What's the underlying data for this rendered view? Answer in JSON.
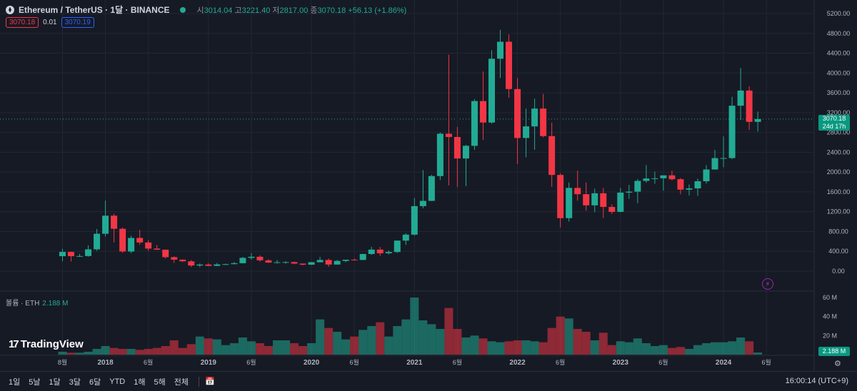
{
  "header": {
    "symbol": "Ethereum / TetherUS · 1달 · BINANCE",
    "open_label": "시",
    "open": "3014.04",
    "high_label": "고",
    "high": "3221.40",
    "low_label": "저",
    "low": "2817.00",
    "close_label": "종",
    "close": "3070.18",
    "change": "+56.13 (+1.86%)"
  },
  "quote": {
    "sell": "3070.18",
    "spread": "0.01",
    "buy": "3070.19"
  },
  "price_axis": {
    "ticks": [
      "5200.00",
      "4800.00",
      "4400.00",
      "4000.00",
      "3600.00",
      "3200.00",
      "2800.00",
      "2400.00",
      "2000.00",
      "1600.00",
      "1200.00",
      "800.00",
      "400.00",
      "0.00"
    ]
  },
  "current_price_tag": {
    "price": "3070.18",
    "countdown": "24d 17h"
  },
  "volume": {
    "label": "볼륨 · ETH",
    "value": "2.188 M",
    "ticks": [
      "60 M",
      "40 M",
      "20 M"
    ],
    "tag": "2.188 M"
  },
  "time_axis": {
    "labels": [
      "8월",
      "2018",
      "6월",
      "2019",
      "6월",
      "2020",
      "6월",
      "2021",
      "6월",
      "2022",
      "6월",
      "2023",
      "6월",
      "2024",
      "6월"
    ]
  },
  "branding": {
    "logo_text": "TradingView"
  },
  "bottom_toolbar": {
    "timeframes": [
      "1일",
      "5날",
      "1달",
      "3달",
      "6달",
      "YTD",
      "1해",
      "5해",
      "전체"
    ],
    "clock": "16:00:14 (UTC+9)"
  },
  "colors": {
    "up": "#22ab94",
    "down": "#f23645",
    "background": "#161a25",
    "grid": "#232733",
    "vol_up": "#22ab94",
    "vol_down": "#f23645"
  },
  "chart_data": {
    "type": "candlestick",
    "interval": "1M",
    "ylim": [
      0,
      5200
    ],
    "volume_ylim": [
      0,
      60
    ],
    "candles": [
      {
        "t": "2017-08",
        "o": 302,
        "h": 450,
        "l": 200,
        "c": 388,
        "v": 3
      },
      {
        "t": "2017-09",
        "o": 388,
        "h": 395,
        "l": 195,
        "c": 302,
        "v": 2
      },
      {
        "t": "2017-10",
        "o": 302,
        "h": 350,
        "l": 285,
        "c": 305,
        "v": 2
      },
      {
        "t": "2017-11",
        "o": 305,
        "h": 520,
        "l": 290,
        "c": 440,
        "v": 3
      },
      {
        "t": "2017-12",
        "o": 440,
        "h": 850,
        "l": 410,
        "c": 755,
        "v": 6
      },
      {
        "t": "2018-01",
        "o": 755,
        "h": 1424,
        "l": 700,
        "c": 1120,
        "v": 9
      },
      {
        "t": "2018-02",
        "o": 1120,
        "h": 1160,
        "l": 580,
        "c": 855,
        "v": 7
      },
      {
        "t": "2018-03",
        "o": 855,
        "h": 880,
        "l": 367,
        "c": 396,
        "v": 6
      },
      {
        "t": "2018-04",
        "o": 396,
        "h": 715,
        "l": 362,
        "c": 670,
        "v": 6
      },
      {
        "t": "2018-05",
        "o": 670,
        "h": 835,
        "l": 530,
        "c": 578,
        "v": 5
      },
      {
        "t": "2018-06",
        "o": 578,
        "h": 625,
        "l": 410,
        "c": 455,
        "v": 6
      },
      {
        "t": "2018-07",
        "o": 455,
        "h": 528,
        "l": 430,
        "c": 433,
        "v": 7
      },
      {
        "t": "2018-08",
        "o": 433,
        "h": 435,
        "l": 255,
        "c": 282,
        "v": 9
      },
      {
        "t": "2018-09",
        "o": 282,
        "h": 300,
        "l": 167,
        "c": 232,
        "v": 15
      },
      {
        "t": "2018-10",
        "o": 232,
        "h": 235,
        "l": 185,
        "c": 198,
        "v": 7
      },
      {
        "t": "2018-11",
        "o": 198,
        "h": 225,
        "l": 82,
        "c": 113,
        "v": 11
      },
      {
        "t": "2018-12",
        "o": 113,
        "h": 156,
        "l": 81,
        "c": 133,
        "v": 19
      },
      {
        "t": "2019-01",
        "o": 133,
        "h": 160,
        "l": 102,
        "c": 106,
        "v": 17
      },
      {
        "t": "2019-02",
        "o": 106,
        "h": 165,
        "l": 101,
        "c": 136,
        "v": 16
      },
      {
        "t": "2019-03",
        "o": 136,
        "h": 150,
        "l": 125,
        "c": 141,
        "v": 10
      },
      {
        "t": "2019-04",
        "o": 141,
        "h": 185,
        "l": 138,
        "c": 160,
        "v": 12
      },
      {
        "t": "2019-05",
        "o": 160,
        "h": 287,
        "l": 156,
        "c": 268,
        "v": 18
      },
      {
        "t": "2019-06",
        "o": 268,
        "h": 365,
        "l": 230,
        "c": 290,
        "v": 14
      },
      {
        "t": "2019-07",
        "o": 290,
        "h": 320,
        "l": 190,
        "c": 218,
        "v": 12
      },
      {
        "t": "2019-08",
        "o": 218,
        "h": 240,
        "l": 163,
        "c": 172,
        "v": 9
      },
      {
        "t": "2019-09",
        "o": 172,
        "h": 225,
        "l": 152,
        "c": 180,
        "v": 15
      },
      {
        "t": "2019-10",
        "o": 180,
        "h": 200,
        "l": 150,
        "c": 183,
        "v": 15
      },
      {
        "t": "2019-11",
        "o": 183,
        "h": 195,
        "l": 138,
        "c": 152,
        "v": 12
      },
      {
        "t": "2019-12",
        "o": 152,
        "h": 155,
        "l": 116,
        "c": 130,
        "v": 9
      },
      {
        "t": "2020-01",
        "o": 130,
        "h": 185,
        "l": 125,
        "c": 180,
        "v": 12
      },
      {
        "t": "2020-02",
        "o": 180,
        "h": 288,
        "l": 175,
        "c": 225,
        "v": 37
      },
      {
        "t": "2020-03",
        "o": 225,
        "h": 255,
        "l": 86,
        "c": 133,
        "v": 28
      },
      {
        "t": "2020-04",
        "o": 133,
        "h": 228,
        "l": 130,
        "c": 206,
        "v": 24
      },
      {
        "t": "2020-05",
        "o": 206,
        "h": 230,
        "l": 180,
        "c": 231,
        "v": 16
      },
      {
        "t": "2020-06",
        "o": 231,
        "h": 255,
        "l": 215,
        "c": 226,
        "v": 19
      },
      {
        "t": "2020-07",
        "o": 226,
        "h": 350,
        "l": 220,
        "c": 346,
        "v": 26
      },
      {
        "t": "2020-08",
        "o": 346,
        "h": 490,
        "l": 330,
        "c": 435,
        "v": 30
      },
      {
        "t": "2020-09",
        "o": 435,
        "h": 488,
        "l": 308,
        "c": 360,
        "v": 34
      },
      {
        "t": "2020-10",
        "o": 360,
        "h": 420,
        "l": 335,
        "c": 386,
        "v": 19
      },
      {
        "t": "2020-11",
        "o": 386,
        "h": 622,
        "l": 370,
        "c": 616,
        "v": 30
      },
      {
        "t": "2020-12",
        "o": 616,
        "h": 765,
        "l": 530,
        "c": 737,
        "v": 37
      },
      {
        "t": "2021-01",
        "o": 737,
        "h": 1475,
        "l": 715,
        "c": 1312,
        "v": 60
      },
      {
        "t": "2021-02",
        "o": 1312,
        "h": 2040,
        "l": 1270,
        "c": 1418,
        "v": 36
      },
      {
        "t": "2021-03",
        "o": 1418,
        "h": 1945,
        "l": 1415,
        "c": 1919,
        "v": 32
      },
      {
        "t": "2021-04",
        "o": 1919,
        "h": 2800,
        "l": 1840,
        "c": 2774,
        "v": 27
      },
      {
        "t": "2021-05",
        "o": 2774,
        "h": 4370,
        "l": 1730,
        "c": 2708,
        "v": 49
      },
      {
        "t": "2021-06",
        "o": 2708,
        "h": 2910,
        "l": 1700,
        "c": 2274,
        "v": 27
      },
      {
        "t": "2021-07",
        "o": 2274,
        "h": 2550,
        "l": 1718,
        "c": 2530,
        "v": 18
      },
      {
        "t": "2021-08",
        "o": 2530,
        "h": 3470,
        "l": 2450,
        "c": 3433,
        "v": 20
      },
      {
        "t": "2021-09",
        "o": 3433,
        "h": 4030,
        "l": 2650,
        "c": 3000,
        "v": 17
      },
      {
        "t": "2021-10",
        "o": 3000,
        "h": 4460,
        "l": 2975,
        "c": 4288,
        "v": 14
      },
      {
        "t": "2021-11",
        "o": 4288,
        "h": 4870,
        "l": 3900,
        "c": 4631,
        "v": 13
      },
      {
        "t": "2021-12",
        "o": 4631,
        "h": 4780,
        "l": 3500,
        "c": 3676,
        "v": 14
      },
      {
        "t": "2022-01",
        "o": 3676,
        "h": 3900,
        "l": 2160,
        "c": 2688,
        "v": 15
      },
      {
        "t": "2022-02",
        "o": 2688,
        "h": 3280,
        "l": 2300,
        "c": 2922,
        "v": 15
      },
      {
        "t": "2022-03",
        "o": 2922,
        "h": 3480,
        "l": 2450,
        "c": 3282,
        "v": 14
      },
      {
        "t": "2022-04",
        "o": 3282,
        "h": 3580,
        "l": 2700,
        "c": 2726,
        "v": 13
      },
      {
        "t": "2022-05",
        "o": 2726,
        "h": 3000,
        "l": 1700,
        "c": 1942,
        "v": 28
      },
      {
        "t": "2022-06",
        "o": 1942,
        "h": 1975,
        "l": 880,
        "c": 1070,
        "v": 40
      },
      {
        "t": "2022-07",
        "o": 1070,
        "h": 1790,
        "l": 1000,
        "c": 1680,
        "v": 38
      },
      {
        "t": "2022-08",
        "o": 1680,
        "h": 2030,
        "l": 1422,
        "c": 1553,
        "v": 27
      },
      {
        "t": "2022-09",
        "o": 1553,
        "h": 1790,
        "l": 1220,
        "c": 1328,
        "v": 24
      },
      {
        "t": "2022-10",
        "o": 1328,
        "h": 1665,
        "l": 1190,
        "c": 1572,
        "v": 15
      },
      {
        "t": "2022-11",
        "o": 1572,
        "h": 1680,
        "l": 1073,
        "c": 1296,
        "v": 23
      },
      {
        "t": "2022-12",
        "o": 1296,
        "h": 1350,
        "l": 1150,
        "c": 1196,
        "v": 10
      },
      {
        "t": "2023-01",
        "o": 1196,
        "h": 1680,
        "l": 1190,
        "c": 1585,
        "v": 14
      },
      {
        "t": "2023-02",
        "o": 1585,
        "h": 1740,
        "l": 1460,
        "c": 1605,
        "v": 13
      },
      {
        "t": "2023-03",
        "o": 1605,
        "h": 1860,
        "l": 1370,
        "c": 1822,
        "v": 17
      },
      {
        "t": "2023-04",
        "o": 1822,
        "h": 2140,
        "l": 1785,
        "c": 1870,
        "v": 12
      },
      {
        "t": "2023-05",
        "o": 1870,
        "h": 2010,
        "l": 1765,
        "c": 1874,
        "v": 9
      },
      {
        "t": "2023-06",
        "o": 1874,
        "h": 1930,
        "l": 1625,
        "c": 1934,
        "v": 10
      },
      {
        "t": "2023-07",
        "o": 1934,
        "h": 2030,
        "l": 1830,
        "c": 1856,
        "v": 7
      },
      {
        "t": "2023-08",
        "o": 1856,
        "h": 1880,
        "l": 1550,
        "c": 1645,
        "v": 8
      },
      {
        "t": "2023-09",
        "o": 1645,
        "h": 1750,
        "l": 1530,
        "c": 1671,
        "v": 6
      },
      {
        "t": "2023-10",
        "o": 1671,
        "h": 1865,
        "l": 1520,
        "c": 1815,
        "v": 10
      },
      {
        "t": "2023-11",
        "o": 1815,
        "h": 2140,
        "l": 1768,
        "c": 2052,
        "v": 12
      },
      {
        "t": "2023-12",
        "o": 2052,
        "h": 2450,
        "l": 2050,
        "c": 2282,
        "v": 13
      },
      {
        "t": "2024-01",
        "o": 2282,
        "h": 2720,
        "l": 2100,
        "c": 2283,
        "v": 13
      },
      {
        "t": "2024-02",
        "o": 2283,
        "h": 3520,
        "l": 2260,
        "c": 3340,
        "v": 14
      },
      {
        "t": "2024-03",
        "o": 3340,
        "h": 4100,
        "l": 3050,
        "c": 3646,
        "v": 18
      },
      {
        "t": "2024-04",
        "o": 3646,
        "h": 3730,
        "l": 2850,
        "c": 3014,
        "v": 14
      },
      {
        "t": "2024-05",
        "o": 3014,
        "h": 3221,
        "l": 2817,
        "c": 3070,
        "v": 2.2
      }
    ]
  }
}
